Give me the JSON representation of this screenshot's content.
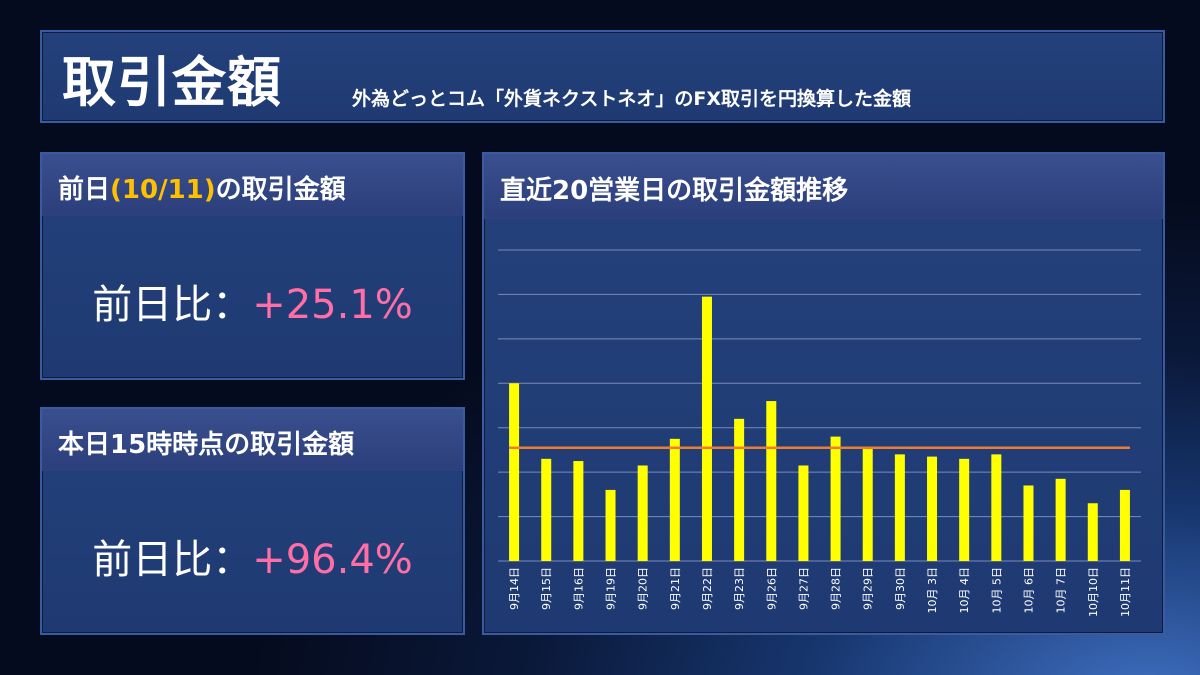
{
  "header": {
    "title": "取引金額",
    "subtitle": "外為どっとコム「外貨ネクストネオ」のFX取引を円換算した金額"
  },
  "card_prev": {
    "title_pre": "前日",
    "title_date": "(10/11)",
    "title_post": "の取引金額",
    "ratio_label": "前日比：",
    "ratio_value": "+25.1%"
  },
  "card_today": {
    "title": "本日15時時点の取引金額",
    "ratio_label": "前日比：",
    "ratio_value": "+96.4%"
  },
  "chart_panel": {
    "title": "直近20営業日の取引金額推移"
  },
  "colors": {
    "bar": "#ffff00",
    "average_line": "#ed7d31",
    "highlight": "#ffc000",
    "ratio_value": "#ff6fa6"
  },
  "chart_data": {
    "type": "bar",
    "categories": [
      "9月14日",
      "9月15日",
      "9月16日",
      "9月19日",
      "9月20日",
      "9月21日",
      "9月22日",
      "9月23日",
      "9月26日",
      "9月27日",
      "9月28日",
      "9月29日",
      "9月30日",
      "10月 3日",
      "10月 4日",
      "10月 5日",
      "10月 6日",
      "10月 7日",
      "10月10日",
      "10月11日"
    ],
    "values": [
      4.0,
      2.3,
      2.25,
      1.6,
      2.15,
      2.75,
      5.95,
      3.2,
      3.6,
      2.15,
      2.8,
      2.55,
      2.4,
      2.35,
      2.3,
      2.4,
      1.7,
      1.85,
      1.3,
      1.6
    ],
    "average": 2.55,
    "ylim": [
      0,
      7
    ],
    "gridlines": true,
    "title": "",
    "xlabel": "",
    "ylabel": ""
  }
}
